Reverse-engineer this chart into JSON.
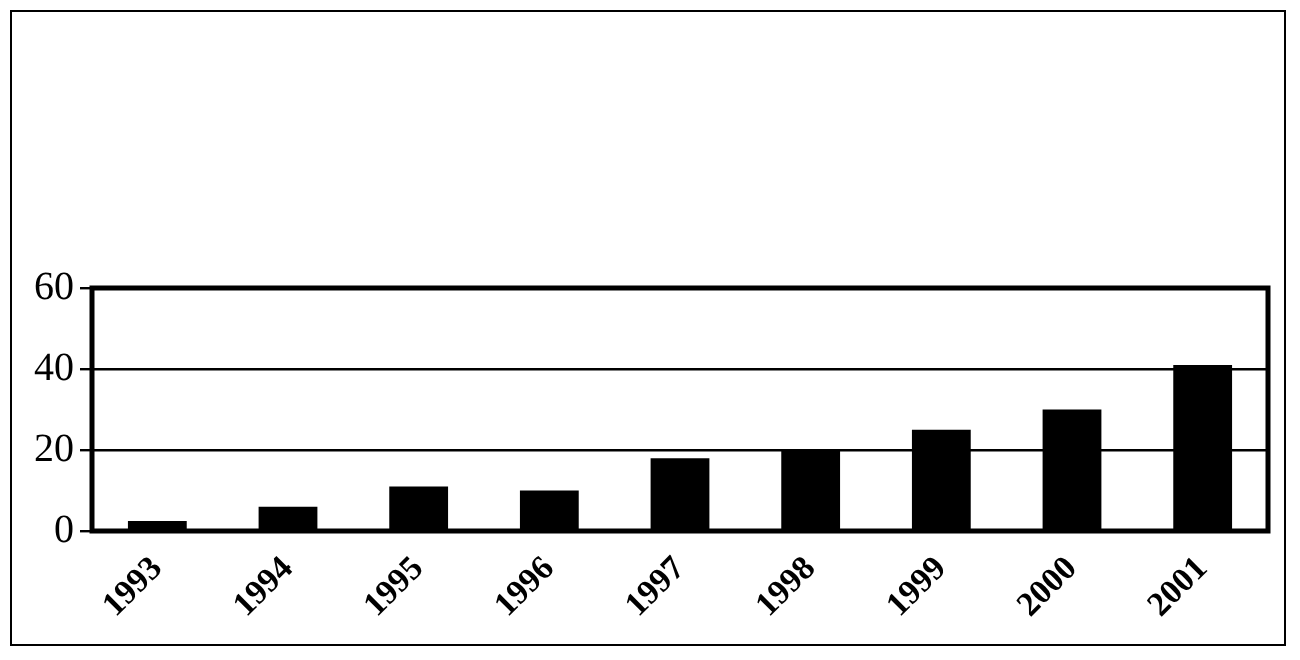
{
  "chart_data": {
    "type": "bar",
    "categories": [
      "1993",
      "1994",
      "1995",
      "1996",
      "1997",
      "1998",
      "1999",
      "2000",
      "2001"
    ],
    "values": [
      2.5,
      6,
      11,
      10,
      18,
      20,
      25,
      30,
      41
    ],
    "color": "#000000",
    "ylim": [
      0,
      60
    ],
    "yticks": [
      0,
      20,
      40,
      60
    ],
    "grid": "y",
    "legend": false
  }
}
